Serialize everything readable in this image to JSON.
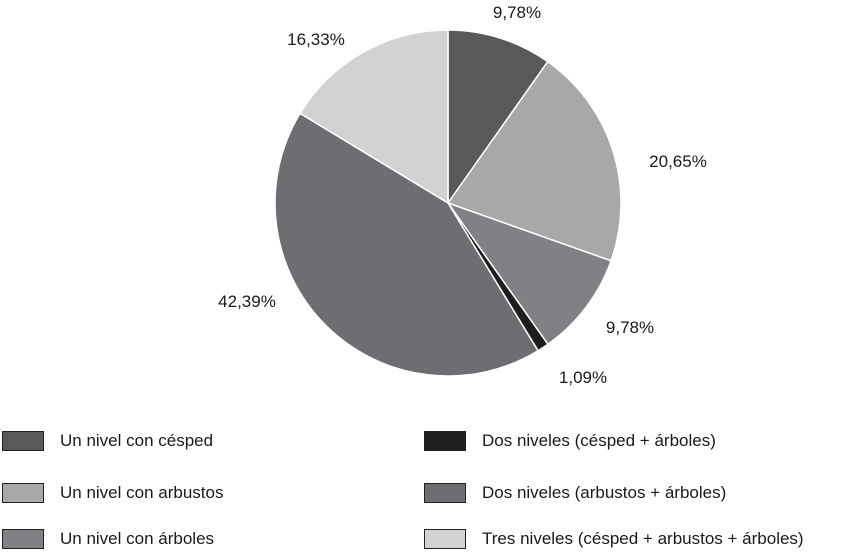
{
  "chart_data": {
    "type": "pie",
    "slices": [
      {
        "label": "Un nivel con césped",
        "value": 9.78,
        "value_label": "9,78%",
        "color": "#58595b"
      },
      {
        "label": "Un nivel con arbustos",
        "value": 20.65,
        "value_label": "20,65%",
        "color": "#a7a8aa"
      },
      {
        "label": "Un nivel con árboles",
        "value": 9.78,
        "value_label": "9,78%",
        "color": "#808184"
      },
      {
        "label": "Dos niveles (césped + árboles)",
        "value": 1.09,
        "value_label": "1,09%",
        "color": "#1e1e1e"
      },
      {
        "label": "Dos niveles (arbustos + árboles)",
        "value": 42.39,
        "value_label": "42,39%",
        "color": "#6d6e71"
      },
      {
        "label": "Tres niveles (césped + arbustos + árboles)",
        "value": 16.33,
        "value_label": "16,33%",
        "color": "#d1d2d4"
      }
    ],
    "start_angle_deg": 0,
    "direction": "clockwise",
    "legend_position": "bottom"
  },
  "legend": [
    {
      "label": "Un nivel con césped",
      "color": "#58595b"
    },
    {
      "label": "Un nivel con arbustos",
      "color": "#a7a8aa"
    },
    {
      "label": "Un nivel con árboles",
      "color": "#808184"
    },
    {
      "label": "Dos niveles (césped + árboles)",
      "color": "#1e1e1e"
    },
    {
      "label": "Dos niveles (arbustos + árboles)",
      "color": "#6d6e71"
    },
    {
      "label": "Tres niveles (césped + arbustos + árboles)",
      "color": "#d1d2d4"
    }
  ]
}
